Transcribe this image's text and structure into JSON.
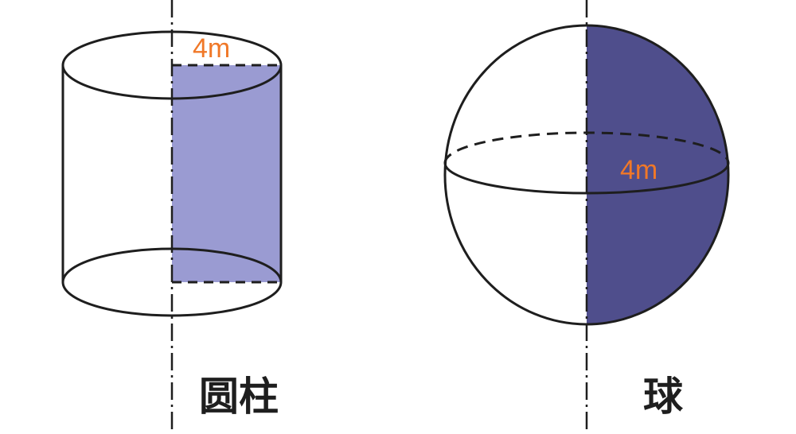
{
  "figures": [
    {
      "caption": "圆柱",
      "dimension_label": "4m"
    },
    {
      "caption": "球",
      "dimension_label": "4m"
    }
  ],
  "colors": {
    "line": "#1e1e1e",
    "cylinder_fill": "#9a9bd2",
    "sphere_fill": "#4f4e8c",
    "label": "#f07828"
  }
}
